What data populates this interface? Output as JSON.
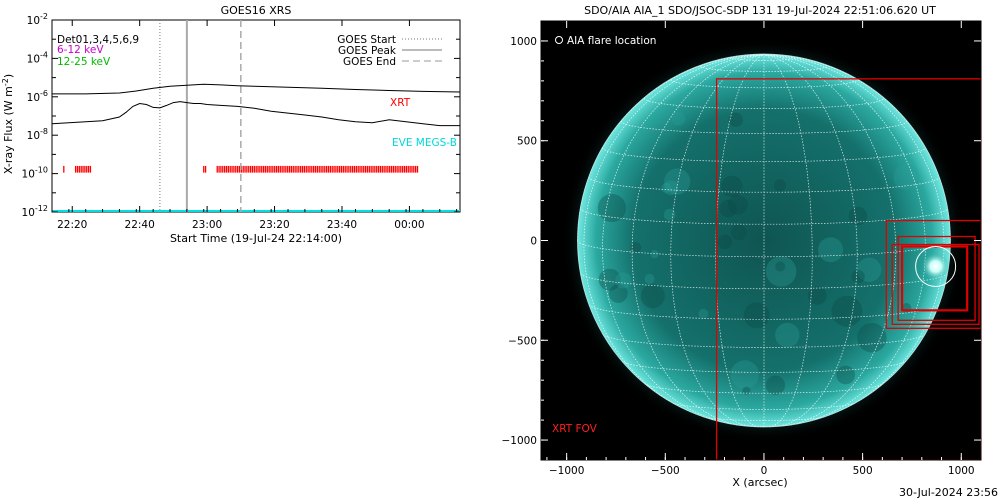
{
  "chart_data": [
    {
      "type": "line",
      "title": "GOES16 XRS",
      "xlabel": "Start Time (19-Jul-24 22:14:00)",
      "ylabel": "X-ray Flux (W m",
      "ylabel_sup": "-2",
      "ylabel_close": ")",
      "ylog": true,
      "ylim_exp": [
        -12,
        -2
      ],
      "xlim_min": [
        0,
        121
      ],
      "x_ticks": [
        {
          "min": 6,
          "label": "22:20"
        },
        {
          "min": 26,
          "label": "22:40"
        },
        {
          "min": 46,
          "label": "23:00"
        },
        {
          "min": 66,
          "label": "23:20"
        },
        {
          "min": 86,
          "label": "23:40"
        },
        {
          "min": 106,
          "label": "00:00"
        }
      ],
      "y_ticks": [
        {
          "exp": -2,
          "label": "10",
          "sup": "-2"
        },
        {
          "exp": -4,
          "label": "10",
          "sup": "-4"
        },
        {
          "exp": -6,
          "label": "10",
          "sup": "-6"
        },
        {
          "exp": -8,
          "label": "10",
          "sup": "-8"
        },
        {
          "exp": -10,
          "label": "10",
          "sup": "-10"
        },
        {
          "exp": -12,
          "label": "10",
          "sup": "-12"
        }
      ],
      "legend_left": [
        {
          "text": "Det01,3,4,5,6,9",
          "color": "#000000"
        },
        {
          "text": "6-12 keV",
          "color": "#cc00cc"
        },
        {
          "text": "12-25 keV",
          "color": "#00bb00"
        }
      ],
      "legend_right": [
        {
          "text": "GOES Start",
          "style": "dotted"
        },
        {
          "text": "GOES Peak",
          "style": "solid"
        },
        {
          "text": "GOES End",
          "style": "dashed"
        }
      ],
      "labels": {
        "xrt": "XRT",
        "eve": "EVE MEGS-B"
      },
      "colors": {
        "xrt": "#ff0000",
        "eve": "#00e0e0"
      },
      "event_lines_min": {
        "start": 32,
        "peak": 40,
        "end": 56
      },
      "series": [
        {
          "x": [
            0,
            10,
            20,
            25,
            30,
            35,
            40,
            45,
            50,
            55,
            60,
            70,
            80,
            90,
            100,
            110,
            121
          ],
          "log_flux": [
            -5.85,
            -5.85,
            -5.8,
            -5.7,
            -5.55,
            -5.45,
            -5.4,
            -5.35,
            -5.38,
            -5.42,
            -5.45,
            -5.5,
            -5.55,
            -5.62,
            -5.67,
            -5.72,
            -5.75
          ]
        },
        {
          "x": [
            0,
            5,
            10,
            15,
            20,
            22,
            24,
            26,
            28,
            30,
            32,
            34,
            36,
            38,
            40,
            42,
            44,
            46,
            50,
            55,
            60,
            65,
            70,
            75,
            80,
            85,
            90,
            95,
            100,
            105,
            110,
            115,
            121
          ],
          "log_flux": [
            -7.4,
            -7.35,
            -7.3,
            -7.25,
            -7.05,
            -6.8,
            -6.5,
            -6.35,
            -6.4,
            -6.55,
            -6.58,
            -6.45,
            -6.3,
            -6.25,
            -6.3,
            -6.35,
            -6.35,
            -6.4,
            -6.45,
            -6.5,
            -6.6,
            -6.75,
            -6.85,
            -6.95,
            -7.05,
            -7.2,
            -7.3,
            -7.35,
            -7.2,
            -7.3,
            -7.4,
            -7.5,
            -7.5
          ]
        }
      ],
      "xrt_coverage_min": [
        [
          3.5,
          4
        ],
        [
          7,
          11.5
        ],
        [
          45,
          46
        ],
        [
          49,
          108.5
        ]
      ]
    },
    {
      "type": "image",
      "title": "SDO/AIA AIA_1 SDO/JSOC-SDP 131 19-Jul-2024 22:51:06.620 UT",
      "xlabel": "X (arcsec)",
      "xlim": [
        -1130,
        1100
      ],
      "ylim": [
        -1100,
        1100
      ],
      "x_ticks": [
        -1000,
        -500,
        0,
        500,
        1000
      ],
      "y_ticks": [
        1000,
        500,
        0,
        -500,
        -1000
      ],
      "legend": "AIA flare location",
      "fov_label": "XRT FOV",
      "solar_radius_arcsec": 945,
      "flare_location": [
        870,
        -130
      ],
      "xrt_fov_boxes": [
        [
          -240,
          -1100,
          1100,
          810
        ],
        [
          620,
          -440,
          1100,
          100
        ],
        [
          680,
          -400,
          1070,
          20
        ],
        [
          700,
          -350,
          1030,
          -30
        ],
        [
          650,
          -420,
          1090,
          -20
        ]
      ],
      "colors": {
        "fov": "#e00000",
        "disk": "#1e8f8a",
        "limb": "#7af0ea"
      }
    }
  ],
  "timestamp": "30-Jul-2024 23:56"
}
